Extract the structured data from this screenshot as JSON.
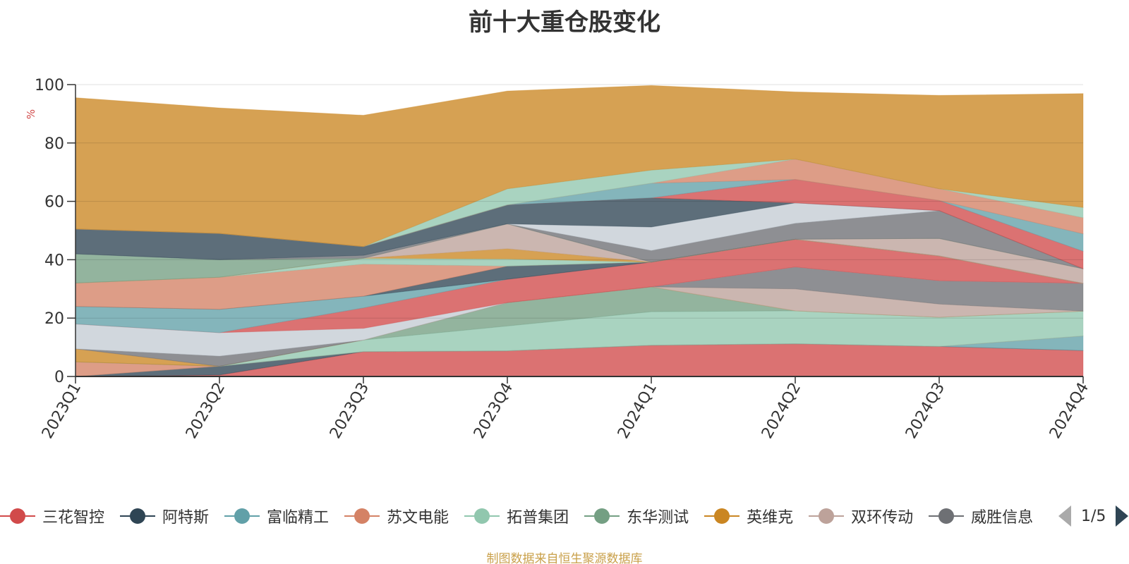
{
  "chart_data": {
    "type": "area",
    "title": "前十大重仓股变化",
    "ylabel": "%",
    "xlabel": "",
    "ylim": [
      0,
      100
    ],
    "yticks": [
      0,
      20,
      40,
      60,
      80,
      100
    ],
    "stacked": true,
    "categories": [
      "2023Q1",
      "2023Q2",
      "2023Q3",
      "2023Q4",
      "2024Q1",
      "2024Q2",
      "2024Q3",
      "2024Q4"
    ],
    "series": [
      {
        "name": "三花智控",
        "color": "#d14a4a",
        "values": [
          0.0,
          0.5,
          8.5,
          8.8,
          10.7,
          11.2,
          10.3,
          8.9
        ]
      },
      {
        "name": "阿特斯",
        "color": "#2f4554",
        "values": [
          0.0,
          3.0,
          0.0,
          0.0,
          0.0,
          0.0,
          0.0,
          0.0
        ]
      },
      {
        "name": "富临精工",
        "color": "#61a0a8",
        "values": [
          0.0,
          0.0,
          0.0,
          0.0,
          0.0,
          0.0,
          0.0,
          5.0
        ]
      },
      {
        "name": "苏文电能",
        "color": "#d48265",
        "values": [
          5.0,
          0.0,
          0.0,
          0.0,
          0.0,
          0.0,
          0.0,
          0.0
        ]
      },
      {
        "name": "拓普集团",
        "color": "#91c7ae",
        "values": [
          0.0,
          0.0,
          4.0,
          8.5,
          11.5,
          11.3,
          10.0,
          8.5
        ]
      },
      {
        "name": "东华测试",
        "color": "#749f83",
        "values": [
          0.0,
          0.0,
          0.0,
          8.0,
          8.5,
          0.0,
          0.0,
          0.0
        ]
      },
      {
        "name": "英维克",
        "color": "#ca8622",
        "values": [
          4.5,
          0.0,
          0.0,
          0.0,
          0.0,
          0.0,
          0.0,
          0.0
        ]
      },
      {
        "name": "双环传动",
        "color": "#bda29a",
        "values": [
          0.0,
          0.0,
          0.0,
          0.0,
          0.0,
          7.5,
          4.5,
          0.0
        ]
      },
      {
        "name": "威胜信息",
        "color": "#6e7074",
        "values": [
          0.0,
          3.5,
          0.0,
          0.0,
          0.0,
          7.5,
          8.0,
          9.5
        ]
      },
      {
        "name": "",
        "color": "#c4ccd3",
        "values": [
          8.5,
          8.0,
          4.0,
          0.0,
          0.0,
          0.0,
          0.0,
          0.0
        ]
      },
      {
        "name": "",
        "color": "#d14a4a",
        "values": [
          0.0,
          0.0,
          7.0,
          8.0,
          8.5,
          9.5,
          8.5,
          0.0
        ]
      },
      {
        "name": "",
        "color": "#61a0a8",
        "values": [
          6.0,
          8.0,
          4.0,
          0.0,
          0.0,
          0.0,
          0.0,
          0.0
        ]
      },
      {
        "name": "",
        "color": "#2f4554",
        "values": [
          0.0,
          0.0,
          0.0,
          4.5,
          0.0,
          0.0,
          0.0,
          0.0
        ]
      },
      {
        "name": "",
        "color": "#d48265",
        "values": [
          8.0,
          11.0,
          11.0,
          0.0,
          0.0,
          0.0,
          0.0,
          0.0
        ]
      },
      {
        "name": "",
        "color": "#91c7ae",
        "values": [
          0.0,
          0.0,
          2.0,
          2.5,
          0.0,
          0.0,
          0.0,
          0.0
        ]
      },
      {
        "name": "",
        "color": "#ca8622",
        "values": [
          0.0,
          0.0,
          0.0,
          3.5,
          0.0,
          0.0,
          0.0,
          0.0
        ]
      },
      {
        "name": "",
        "color": "#bda29a",
        "values": [
          0.0,
          0.0,
          0.0,
          8.5,
          0.0,
          0.0,
          6.0,
          5.0
        ]
      },
      {
        "name": "",
        "color": "#749f83",
        "values": [
          10.0,
          6.0,
          0.0,
          0.0,
          0.0,
          0.0,
          0.0,
          0.0
        ]
      },
      {
        "name": "",
        "color": "#6e7074",
        "values": [
          0.0,
          0.0,
          1.0,
          0.0,
          4.0,
          5.5,
          9.5,
          0.0
        ]
      },
      {
        "name": "",
        "color": "#c4ccd3",
        "values": [
          0.0,
          0.0,
          0.0,
          0.0,
          8.0,
          7.0,
          0.0,
          0.0
        ]
      },
      {
        "name": "",
        "color": "#2f4554",
        "values": [
          8.5,
          9.0,
          3.0,
          6.5,
          10.0,
          0.0,
          0.0,
          0.0
        ]
      },
      {
        "name": "",
        "color": "#d14a4a",
        "values": [
          0.0,
          0.0,
          0.0,
          0.0,
          0.0,
          8.0,
          3.5,
          6.0
        ]
      },
      {
        "name": "",
        "color": "#61a0a8",
        "values": [
          0.0,
          0.0,
          0.0,
          0.0,
          5.0,
          0.0,
          0.0,
          6.0
        ]
      },
      {
        "name": "",
        "color": "#d48265",
        "values": [
          0.0,
          0.0,
          0.0,
          0.0,
          0.0,
          7.0,
          4.0,
          5.5
        ]
      },
      {
        "name": "",
        "color": "#91c7ae",
        "values": [
          0.0,
          0.0,
          0.0,
          5.5,
          4.5,
          0.0,
          0.0,
          3.5
        ]
      },
      {
        "name": "",
        "color": "#ca8622",
        "values": [
          45.0,
          43.0,
          45.0,
          33.5,
          29.0,
          23.0,
          32.0,
          39.0
        ]
      }
    ]
  },
  "legend": {
    "page_indicator": "1/5"
  },
  "source_note": "制图数据来自恒生聚源数据库"
}
